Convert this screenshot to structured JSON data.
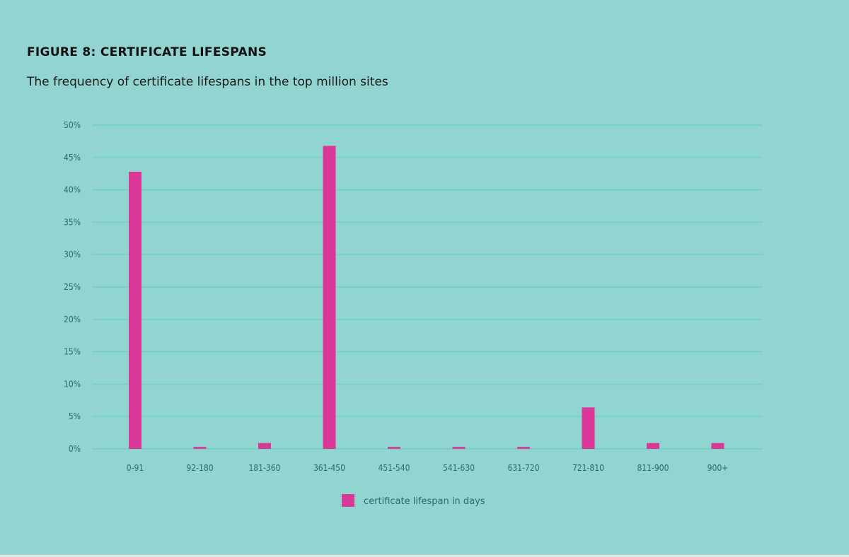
{
  "header": {
    "title": "FIGURE 8: CERTIFICATE LIFESPANS",
    "subtitle": "The frequency of certificate lifespans in the top million sites"
  },
  "colors": {
    "background": "#91d4d0",
    "bar": "#d93896",
    "grid": "#6fcfcb",
    "tick_text": "#2d6b69"
  },
  "chart_data": {
    "type": "bar",
    "title": "FIGURE 8: CERTIFICATE LIFESPANS",
    "subtitle": "The frequency of certificate lifespans in the top million sites",
    "categories": [
      "0-91",
      "92-180",
      "181-360",
      "361-450",
      "451-540",
      "541-630",
      "631-720",
      "721-810",
      "811-900",
      "900+"
    ],
    "series": [
      {
        "name": "certificate lifespan in days",
        "values": [
          42.8,
          0.3,
          0.9,
          46.8,
          0.3,
          0.3,
          0.3,
          6.4,
          0.9,
          0.9
        ]
      }
    ],
    "y_ticks": [
      "0%",
      "5%",
      "10%",
      "15%",
      "20%",
      "25%",
      "30%",
      "35%",
      "40%",
      "45%",
      "50%"
    ],
    "ylim": [
      0,
      50
    ],
    "grid": true,
    "legend_position": "bottom-center"
  }
}
